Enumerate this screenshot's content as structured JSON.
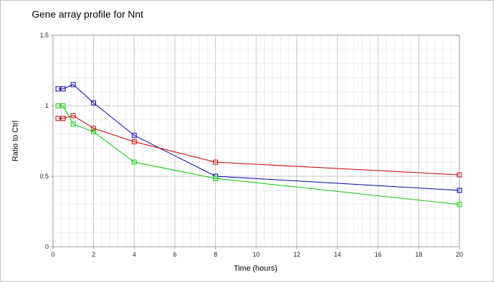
{
  "chart_data": {
    "type": "line",
    "title": "Gene array profile for Nnt",
    "xlabel": "Time (hours)",
    "ylabel": "Ratio to Ctrl",
    "xlim": [
      0,
      20
    ],
    "ylim": [
      0,
      1.5
    ],
    "xticks": [
      0,
      2,
      4,
      6,
      8,
      10,
      12,
      14,
      16,
      18,
      20
    ],
    "yticks": [
      0,
      0.5,
      1,
      1.5
    ],
    "ytick_labels": [
      "0",
      "0.5",
      "1",
      "1.5"
    ],
    "grid": true,
    "minor_grid": true,
    "x": [
      0.25,
      0.5,
      1,
      2,
      4,
      8,
      20
    ],
    "series": [
      {
        "color": "#0000aa",
        "values": [
          1.12,
          1.12,
          1.15,
          1.02,
          0.79,
          0.5,
          0.4
        ]
      },
      {
        "color": "#cc0000",
        "values": [
          0.91,
          0.91,
          0.93,
          0.84,
          0.745,
          0.6,
          0.51
        ]
      },
      {
        "color": "#00cc00",
        "values": [
          1.0,
          1.0,
          0.87,
          0.815,
          0.6,
          0.485,
          0.3
        ]
      }
    ]
  }
}
